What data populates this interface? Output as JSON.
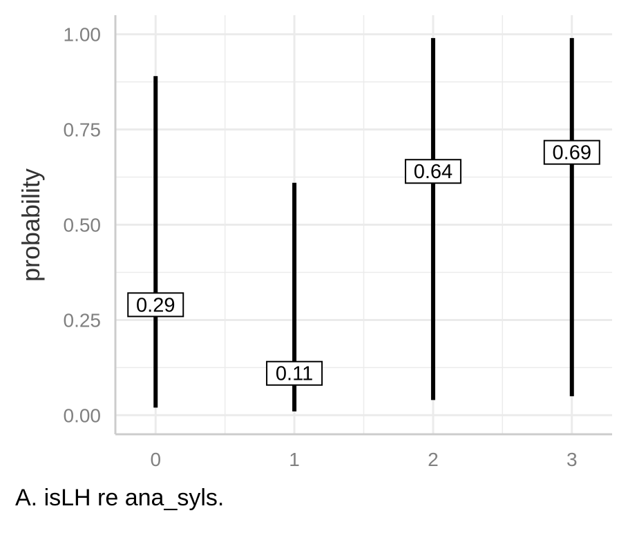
{
  "chart_data": {
    "type": "errorbar",
    "title": "",
    "xlabel": "",
    "ylabel": "probability",
    "ylim": [
      -0.05,
      1.05
    ],
    "xlim": [
      -0.29,
      3.29
    ],
    "grid": true,
    "legend": "none",
    "x_ticks": [
      "0",
      "1",
      "2",
      "3"
    ],
    "y_ticks": [
      "0.00",
      "0.25",
      "0.50",
      "0.75",
      "1.00"
    ],
    "points": [
      {
        "x": 0,
        "estimate": 0.29,
        "lower": 0.02,
        "upper": 0.89,
        "label": "0.29"
      },
      {
        "x": 1,
        "estimate": 0.11,
        "lower": 0.01,
        "upper": 0.61,
        "label": "0.11"
      },
      {
        "x": 2,
        "estimate": 0.64,
        "lower": 0.04,
        "upper": 0.99,
        "label": "0.64"
      },
      {
        "x": 3,
        "estimate": 0.69,
        "lower": 0.05,
        "upper": 0.99,
        "label": "0.69"
      }
    ],
    "colors": {
      "bar": "#000000",
      "grid": "#ebebeb",
      "axis": "#cccccc",
      "tick_text": "#808080"
    }
  },
  "caption": "A. isLH re ana_syls."
}
